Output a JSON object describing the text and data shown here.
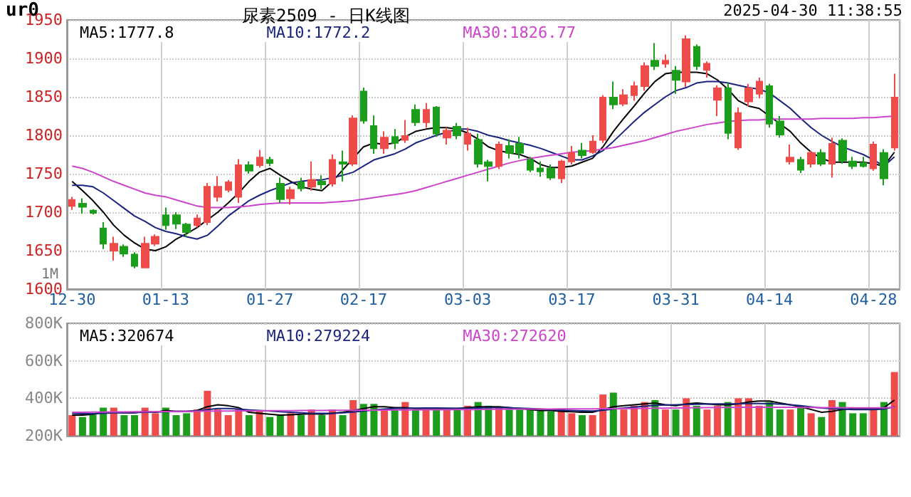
{
  "chart_data": [
    {
      "type": "candlestick",
      "title": "尿素2509 - 日K线图",
      "annotations": [
        "ur0",
        "2025-04-30 11:38:55",
        "1M"
      ],
      "categories": [
        "12-30",
        null,
        null,
        null,
        null,
        null,
        null,
        null,
        null,
        "01-13",
        null,
        null,
        null,
        null,
        null,
        null,
        null,
        null,
        null,
        "01-27",
        null,
        null,
        null,
        null,
        null,
        null,
        null,
        null,
        "02-17",
        null,
        null,
        null,
        null,
        null,
        null,
        null,
        null,
        null,
        "03-03",
        null,
        null,
        null,
        null,
        null,
        null,
        null,
        null,
        null,
        "03-17",
        null,
        null,
        null,
        null,
        null,
        null,
        null,
        null,
        null,
        "03-31",
        null,
        null,
        null,
        null,
        null,
        null,
        null,
        null,
        "04-14",
        null,
        null,
        null,
        null,
        null,
        null,
        null,
        null,
        null,
        "04-28",
        null,
        null
      ],
      "ylim": [
        1600,
        1950
      ],
      "yticks": [
        1600,
        1650,
        1700,
        1750,
        1800,
        1850,
        1900,
        1950
      ],
      "grid": true,
      "legend": "top left",
      "marker": "none",
      "series": [
        {
          "ohlc": [
            [
              1708,
              1720,
              1703,
              1716
            ],
            [
              1711,
              1718,
              1698,
              1707
            ],
            [
              1702,
              1704,
              1697,
              1699
            ],
            [
              1679,
              1687,
              1652,
              1659
            ],
            [
              1650,
              1668,
              1637,
              1659
            ],
            [
              1655,
              1658,
              1642,
              1646
            ],
            [
              1645,
              1648,
              1627,
              1630
            ],
            [
              1628,
              1668,
              1628,
              1659
            ],
            [
              1659,
              1671,
              1656,
              1668
            ],
            [
              1696,
              1706,
              1677,
              1683
            ],
            [
              1696,
              1700,
              1678,
              1685
            ],
            [
              1684,
              1686,
              1668,
              1674
            ],
            [
              1683,
              1697,
              1680,
              1692
            ],
            [
              1687,
              1738,
              1683,
              1733
            ],
            [
              1720,
              1747,
              1714,
              1733
            ],
            [
              1729,
              1742,
              1726,
              1739
            ],
            [
              1720,
              1769,
              1712,
              1761
            ],
            [
              1761,
              1766,
              1750,
              1754
            ],
            [
              1761,
              1781,
              1758,
              1771
            ],
            [
              1768,
              1772,
              1760,
              1764
            ],
            [
              1737,
              1745,
              1712,
              1717
            ],
            [
              1718,
              1733,
              1710,
              1729
            ],
            [
              1739,
              1745,
              1727,
              1731
            ],
            [
              1733,
              1766,
              1728,
              1742
            ],
            [
              1740,
              1748,
              1730,
              1736
            ],
            [
              1737,
              1775,
              1733,
              1768
            ],
            [
              1765,
              1780,
              1740,
              1763
            ],
            [
              1763,
              1826,
              1760,
              1822
            ],
            [
              1857,
              1862,
              1815,
              1819
            ],
            [
              1812,
              1826,
              1776,
              1783
            ],
            [
              1783,
              1805,
              1776,
              1797
            ],
            [
              1798,
              1808,
              1782,
              1790
            ],
            [
              1794,
              1820,
              1790,
              1799
            ],
            [
              1833,
              1840,
              1812,
              1817
            ],
            [
              1817,
              1842,
              1810,
              1833
            ],
            [
              1836,
              1838,
              1798,
              1802
            ],
            [
              1797,
              1810,
              1788,
              1806
            ],
            [
              1811,
              1816,
              1795,
              1800
            ],
            [
              1789,
              1810,
              1780,
              1802
            ],
            [
              1794,
              1802,
              1758,
              1763
            ],
            [
              1765,
              1768,
              1740,
              1760
            ],
            [
              1760,
              1792,
              1756,
              1788
            ],
            [
              1786,
              1795,
              1770,
              1777
            ],
            [
              1789,
              1798,
              1770,
              1777
            ],
            [
              1768,
              1772,
              1752,
              1755
            ],
            [
              1757,
              1766,
              1746,
              1753
            ],
            [
              1757,
              1762,
              1742,
              1745
            ],
            [
              1744,
              1768,
              1738,
              1766
            ],
            [
              1766,
              1786,
              1762,
              1777
            ],
            [
              1780,
              1790,
              1770,
              1774
            ],
            [
              1778,
              1800,
              1776,
              1792
            ],
            [
              1794,
              1852,
              1790,
              1849
            ],
            [
              1849,
              1870,
              1834,
              1840
            ],
            [
              1841,
              1860,
              1838,
              1852
            ],
            [
              1852,
              1870,
              1845,
              1864
            ],
            [
              1864,
              1895,
              1858,
              1890
            ],
            [
              1897,
              1920,
              1885,
              1890
            ],
            [
              1893,
              1905,
              1888,
              1897
            ],
            [
              1884,
              1890,
              1854,
              1872
            ],
            [
              1870,
              1930,
              1863,
              1925
            ],
            [
              1915,
              1918,
              1885,
              1890
            ],
            [
              1885,
              1896,
              1875,
              1893
            ],
            [
              1846,
              1865,
              1825,
              1861
            ],
            [
              1861,
              1868,
              1795,
              1803
            ],
            [
              1784,
              1836,
              1781,
              1829
            ],
            [
              1844,
              1867,
              1838,
              1861
            ],
            [
              1854,
              1875,
              1848,
              1870
            ],
            [
              1864,
              1867,
              1810,
              1815
            ],
            [
              1818,
              1825,
              1797,
              1801
            ],
            [
              1766,
              1788,
              1762,
              1771
            ],
            [
              1768,
              1772,
              1751,
              1755
            ],
            [
              1763,
              1780,
              1758,
              1777
            ],
            [
              1777,
              1782,
              1760,
              1763
            ],
            [
              1763,
              1797,
              1745,
              1789
            ],
            [
              1793,
              1796,
              1763,
              1767
            ],
            [
              1766,
              1772,
              1756,
              1760
            ],
            [
              1764,
              1772,
              1758,
              1760
            ],
            [
              1757,
              1792,
              1754,
              1788
            ],
            [
              1777,
              1782,
              1735,
              1744
            ],
            [
              1784,
              1880,
              1780,
              1849
            ]
          ],
          "colors": [
            "#ee4b4b",
            "#1c9e1c",
            "#1c9e1c",
            "#1c9e1c",
            "#ee4b4b",
            "#1c9e1c",
            "#1c9e1c",
            "#ee4b4b",
            "#ee4b4b",
            "#1c9e1c",
            "#1c9e1c",
            "#1c9e1c",
            "#ee4b4b",
            "#ee4b4b",
            "#ee4b4b",
            "#ee4b4b",
            "#ee4b4b",
            "#1c9e1c",
            "#ee4b4b",
            "#1c9e1c",
            "#1c9e1c",
            "#ee4b4b",
            "#1c9e1c",
            "#ee4b4b",
            "#1c9e1c",
            "#ee4b4b",
            "#1c9e1c",
            "#ee4b4b",
            "#1c9e1c",
            "#1c9e1c",
            "#ee4b4b",
            "#1c9e1c",
            "#ee4b4b",
            "#1c9e1c",
            "#ee4b4b",
            "#1c9e1c",
            "#ee4b4b",
            "#1c9e1c",
            "#ee4b4b",
            "#1c9e1c",
            "#1c9e1c",
            "#ee4b4b",
            "#1c9e1c",
            "#1c9e1c",
            "#1c9e1c",
            "#1c9e1c",
            "#1c9e1c",
            "#ee4b4b",
            "#ee4b4b",
            "#1c9e1c",
            "#ee4b4b",
            "#ee4b4b",
            "#1c9e1c",
            "#ee4b4b",
            "#ee4b4b",
            "#ee4b4b",
            "#1c9e1c",
            "#ee4b4b",
            "#1c9e1c",
            "#ee4b4b",
            "#1c9e1c",
            "#ee4b4b",
            "#ee4b4b",
            "#1c9e1c",
            "#ee4b4b",
            "#ee4b4b",
            "#ee4b4b",
            "#1c9e1c",
            "#1c9e1c",
            "#ee4b4b",
            "#1c9e1c",
            "#ee4b4b",
            "#1c9e1c",
            "#ee4b4b",
            "#1c9e1c",
            "#1c9e1c",
            "#1c9e1c",
            "#ee4b4b",
            "#1c9e1c",
            "#ee4b4b"
          ]
        },
        {
          "type": "line",
          "name": "MA5:1777.8",
          "color": "#000000",
          "values": [
            1740,
            1728,
            1715,
            1700,
            1683,
            1670,
            1660,
            1652,
            1650,
            1655,
            1665,
            1672,
            1680,
            1690,
            1700,
            1712,
            1725,
            1740,
            1752,
            1757,
            1748,
            1740,
            1733,
            1730,
            1728,
            1740,
            1755,
            1770,
            1785,
            1790,
            1788,
            1790,
            1798,
            1805,
            1808,
            1810,
            1810,
            1808,
            1803,
            1795,
            1785,
            1780,
            1777,
            1775,
            1770,
            1762,
            1758,
            1758,
            1760,
            1765,
            1770,
            1785,
            1805,
            1822,
            1838,
            1855,
            1870,
            1880,
            1882,
            1882,
            1882,
            1880,
            1872,
            1860,
            1845,
            1838,
            1835,
            1825,
            1815,
            1805,
            1790,
            1778,
            1770,
            1765,
            1765,
            1765,
            1765,
            1763,
            1760,
            1778
          ]
        },
        {
          "type": "line",
          "name": "MA10:1772.2",
          "color": "#1a237e",
          "values": [
            1735,
            1735,
            1733,
            1725,
            1715,
            1705,
            1695,
            1688,
            1680,
            1675,
            1672,
            1668,
            1665,
            1670,
            1682,
            1695,
            1705,
            1715,
            1722,
            1728,
            1733,
            1738,
            1740,
            1742,
            1742,
            1745,
            1748,
            1752,
            1760,
            1768,
            1772,
            1776,
            1782,
            1790,
            1795,
            1800,
            1804,
            1808,
            1808,
            1805,
            1800,
            1797,
            1793,
            1790,
            1787,
            1783,
            1778,
            1773,
            1768,
            1768,
            1773,
            1780,
            1792,
            1805,
            1818,
            1830,
            1840,
            1850,
            1858,
            1862,
            1868,
            1870,
            1870,
            1868,
            1865,
            1862,
            1860,
            1855,
            1845,
            1835,
            1822,
            1810,
            1800,
            1792,
            1785,
            1780,
            1775,
            1768,
            1760,
            1772
          ]
        },
        {
          "type": "line",
          "name": "MA30:1826.77",
          "color": "#cc44cc",
          "values": [
            1760,
            1757,
            1752,
            1746,
            1740,
            1735,
            1730,
            1725,
            1722,
            1720,
            1716,
            1712,
            1708,
            1706,
            1706,
            1706,
            1707,
            1708,
            1710,
            1711,
            1712,
            1712,
            1712,
            1712,
            1712,
            1713,
            1714,
            1715,
            1717,
            1719,
            1721,
            1723,
            1725,
            1728,
            1732,
            1736,
            1740,
            1744,
            1748,
            1752,
            1756,
            1760,
            1764,
            1767,
            1770,
            1772,
            1774,
            1776,
            1778,
            1779,
            1780,
            1782,
            1784,
            1787,
            1790,
            1793,
            1797,
            1801,
            1805,
            1808,
            1811,
            1814,
            1816,
            1818,
            1819,
            1820,
            1820,
            1821,
            1821,
            1821,
            1821,
            1821,
            1822,
            1822,
            1822,
            1822,
            1823,
            1823,
            1824,
            1825
          ]
        }
      ]
    },
    {
      "type": "bar",
      "tick_labels": "y",
      "categories": [
        null,
        null,
        null,
        null,
        null,
        null,
        null,
        null,
        null,
        null,
        null,
        null,
        null,
        null,
        null,
        null,
        null,
        null,
        null,
        null,
        null,
        null,
        null,
        null,
        null,
        null,
        null,
        null,
        null,
        null,
        null,
        null,
        null,
        null,
        null,
        null,
        null,
        null,
        null,
        null,
        null,
        null,
        null,
        null,
        null,
        null,
        null,
        null,
        null,
        null,
        null,
        null,
        null,
        null,
        null,
        null,
        null,
        null,
        null,
        null,
        null,
        null,
        null,
        null,
        null,
        null,
        null,
        null,
        null,
        null,
        null,
        null,
        null,
        null,
        null,
        null,
        null,
        null,
        null,
        null
      ],
      "ylim": [
        200000,
        800000
      ],
      "yticks": [
        {
          "value": 200000,
          "label": "200K"
        },
        {
          "value": 400000,
          "label": "400K"
        },
        {
          "value": 600000,
          "label": "600K"
        },
        {
          "value": 800000,
          "label": "800K"
        }
      ],
      "grid": true,
      "legend": "top left",
      "marker": "none",
      "series": [
        {
          "values": [
            310000,
            300000,
            320000,
            350000,
            350000,
            310000,
            310000,
            350000,
            320000,
            350000,
            310000,
            320000,
            340000,
            440000,
            340000,
            310000,
            340000,
            310000,
            330000,
            300000,
            310000,
            320000,
            310000,
            340000,
            310000,
            340000,
            310000,
            390000,
            370000,
            370000,
            340000,
            340000,
            380000,
            340000,
            340000,
            340000,
            340000,
            340000,
            360000,
            380000,
            360000,
            350000,
            340000,
            340000,
            340000,
            340000,
            330000,
            340000,
            320000,
            310000,
            310000,
            420000,
            430000,
            340000,
            360000,
            380000,
            390000,
            340000,
            340000,
            400000,
            360000,
            340000,
            360000,
            380000,
            400000,
            400000,
            360000,
            380000,
            340000,
            340000,
            350000,
            320000,
            300000,
            390000,
            380000,
            320000,
            320000,
            340000,
            380000,
            540000
          ],
          "colors": [
            "#ee4b4b",
            "#1c9e1c",
            "#1c9e1c",
            "#1c9e1c",
            "#ee4b4b",
            "#1c9e1c",
            "#1c9e1c",
            "#ee4b4b",
            "#ee4b4b",
            "#1c9e1c",
            "#1c9e1c",
            "#1c9e1c",
            "#ee4b4b",
            "#ee4b4b",
            "#ee4b4b",
            "#ee4b4b",
            "#ee4b4b",
            "#1c9e1c",
            "#ee4b4b",
            "#1c9e1c",
            "#1c9e1c",
            "#ee4b4b",
            "#1c9e1c",
            "#ee4b4b",
            "#1c9e1c",
            "#ee4b4b",
            "#1c9e1c",
            "#ee4b4b",
            "#1c9e1c",
            "#1c9e1c",
            "#ee4b4b",
            "#1c9e1c",
            "#ee4b4b",
            "#1c9e1c",
            "#ee4b4b",
            "#1c9e1c",
            "#ee4b4b",
            "#1c9e1c",
            "#ee4b4b",
            "#1c9e1c",
            "#1c9e1c",
            "#ee4b4b",
            "#1c9e1c",
            "#1c9e1c",
            "#1c9e1c",
            "#1c9e1c",
            "#1c9e1c",
            "#ee4b4b",
            "#ee4b4b",
            "#1c9e1c",
            "#ee4b4b",
            "#ee4b4b",
            "#1c9e1c",
            "#ee4b4b",
            "#ee4b4b",
            "#ee4b4b",
            "#1c9e1c",
            "#ee4b4b",
            "#1c9e1c",
            "#ee4b4b",
            "#1c9e1c",
            "#ee4b4b",
            "#ee4b4b",
            "#1c9e1c",
            "#ee4b4b",
            "#ee4b4b",
            "#ee4b4b",
            "#1c9e1c",
            "#1c9e1c",
            "#ee4b4b",
            "#1c9e1c",
            "#ee4b4b",
            "#1c9e1c",
            "#ee4b4b",
            "#1c9e1c",
            "#1c9e1c",
            "#1c9e1c",
            "#ee4b4b",
            "#1c9e1c",
            "#ee4b4b"
          ]
        },
        {
          "type": "line",
          "name": "MA5:320674",
          "color": "#000000",
          "values": [
            310000,
            310000,
            315000,
            325000,
            325000,
            322000,
            322000,
            330000,
            325000,
            335000,
            330000,
            330000,
            335000,
            355000,
            365000,
            360000,
            350000,
            325000,
            320000,
            315000,
            310000,
            312000,
            315000,
            318000,
            315000,
            320000,
            325000,
            335000,
            345000,
            355000,
            355000,
            350000,
            350000,
            345000,
            345000,
            345000,
            345000,
            345000,
            350000,
            355000,
            355000,
            355000,
            350000,
            345000,
            340000,
            335000,
            335000,
            330000,
            328000,
            325000,
            325000,
            340000,
            355000,
            360000,
            365000,
            370000,
            375000,
            365000,
            360000,
            370000,
            375000,
            370000,
            365000,
            365000,
            370000,
            380000,
            385000,
            385000,
            375000,
            365000,
            355000,
            340000,
            325000,
            330000,
            340000,
            345000,
            345000,
            345000,
            350000,
            390000
          ]
        },
        {
          "type": "line",
          "name": "MA10:279224",
          "color": "#1a237e",
          "values": [
            320000,
            318000,
            318000,
            320000,
            322000,
            322000,
            323000,
            325000,
            326000,
            328000,
            330000,
            330000,
            332000,
            340000,
            345000,
            345000,
            342000,
            338000,
            335000,
            332000,
            328000,
            325000,
            322000,
            320000,
            320000,
            320000,
            322000,
            326000,
            332000,
            338000,
            342000,
            345000,
            346000,
            347000,
            348000,
            348000,
            347000,
            346000,
            346000,
            348000,
            350000,
            350000,
            349000,
            347000,
            345000,
            342000,
            340000,
            337000,
            335000,
            333000,
            332000,
            336000,
            342000,
            348000,
            353000,
            358000,
            362000,
            364000,
            365000,
            367000,
            368000,
            369000,
            370000,
            370000,
            371000,
            372000,
            372000,
            371000,
            369000,
            365000,
            360000,
            354000,
            348000,
            344000,
            342000,
            340000,
            340000,
            340000,
            342000,
            355000
          ]
        },
        {
          "type": "line",
          "name": "MA30:272620",
          "color": "#cc44cc",
          "values": [
            325000,
            325000,
            326000,
            326000,
            327000,
            327000,
            328000,
            328000,
            329000,
            329000,
            330000,
            330000,
            331000,
            331000,
            332000,
            332000,
            333000,
            333000,
            333000,
            334000,
            334000,
            334000,
            335000,
            335000,
            335000,
            336000,
            336000,
            336000,
            337000,
            337000,
            337000,
            338000,
            338000,
            338000,
            339000,
            339000,
            339000,
            340000,
            340000,
            340000,
            341000,
            341000,
            341000,
            342000,
            342000,
            342000,
            342000,
            343000,
            343000,
            343000,
            343000,
            344000,
            344000,
            345000,
            345000,
            346000,
            347000,
            347000,
            348000,
            349000,
            350000,
            350000,
            351000,
            351000,
            352000,
            352000,
            352000,
            352000,
            352000,
            352000,
            351000,
            351000,
            350000,
            350000,
            350000,
            349000,
            349000,
            349000,
            349000,
            352000
          ]
        }
      ]
    }
  ]
}
